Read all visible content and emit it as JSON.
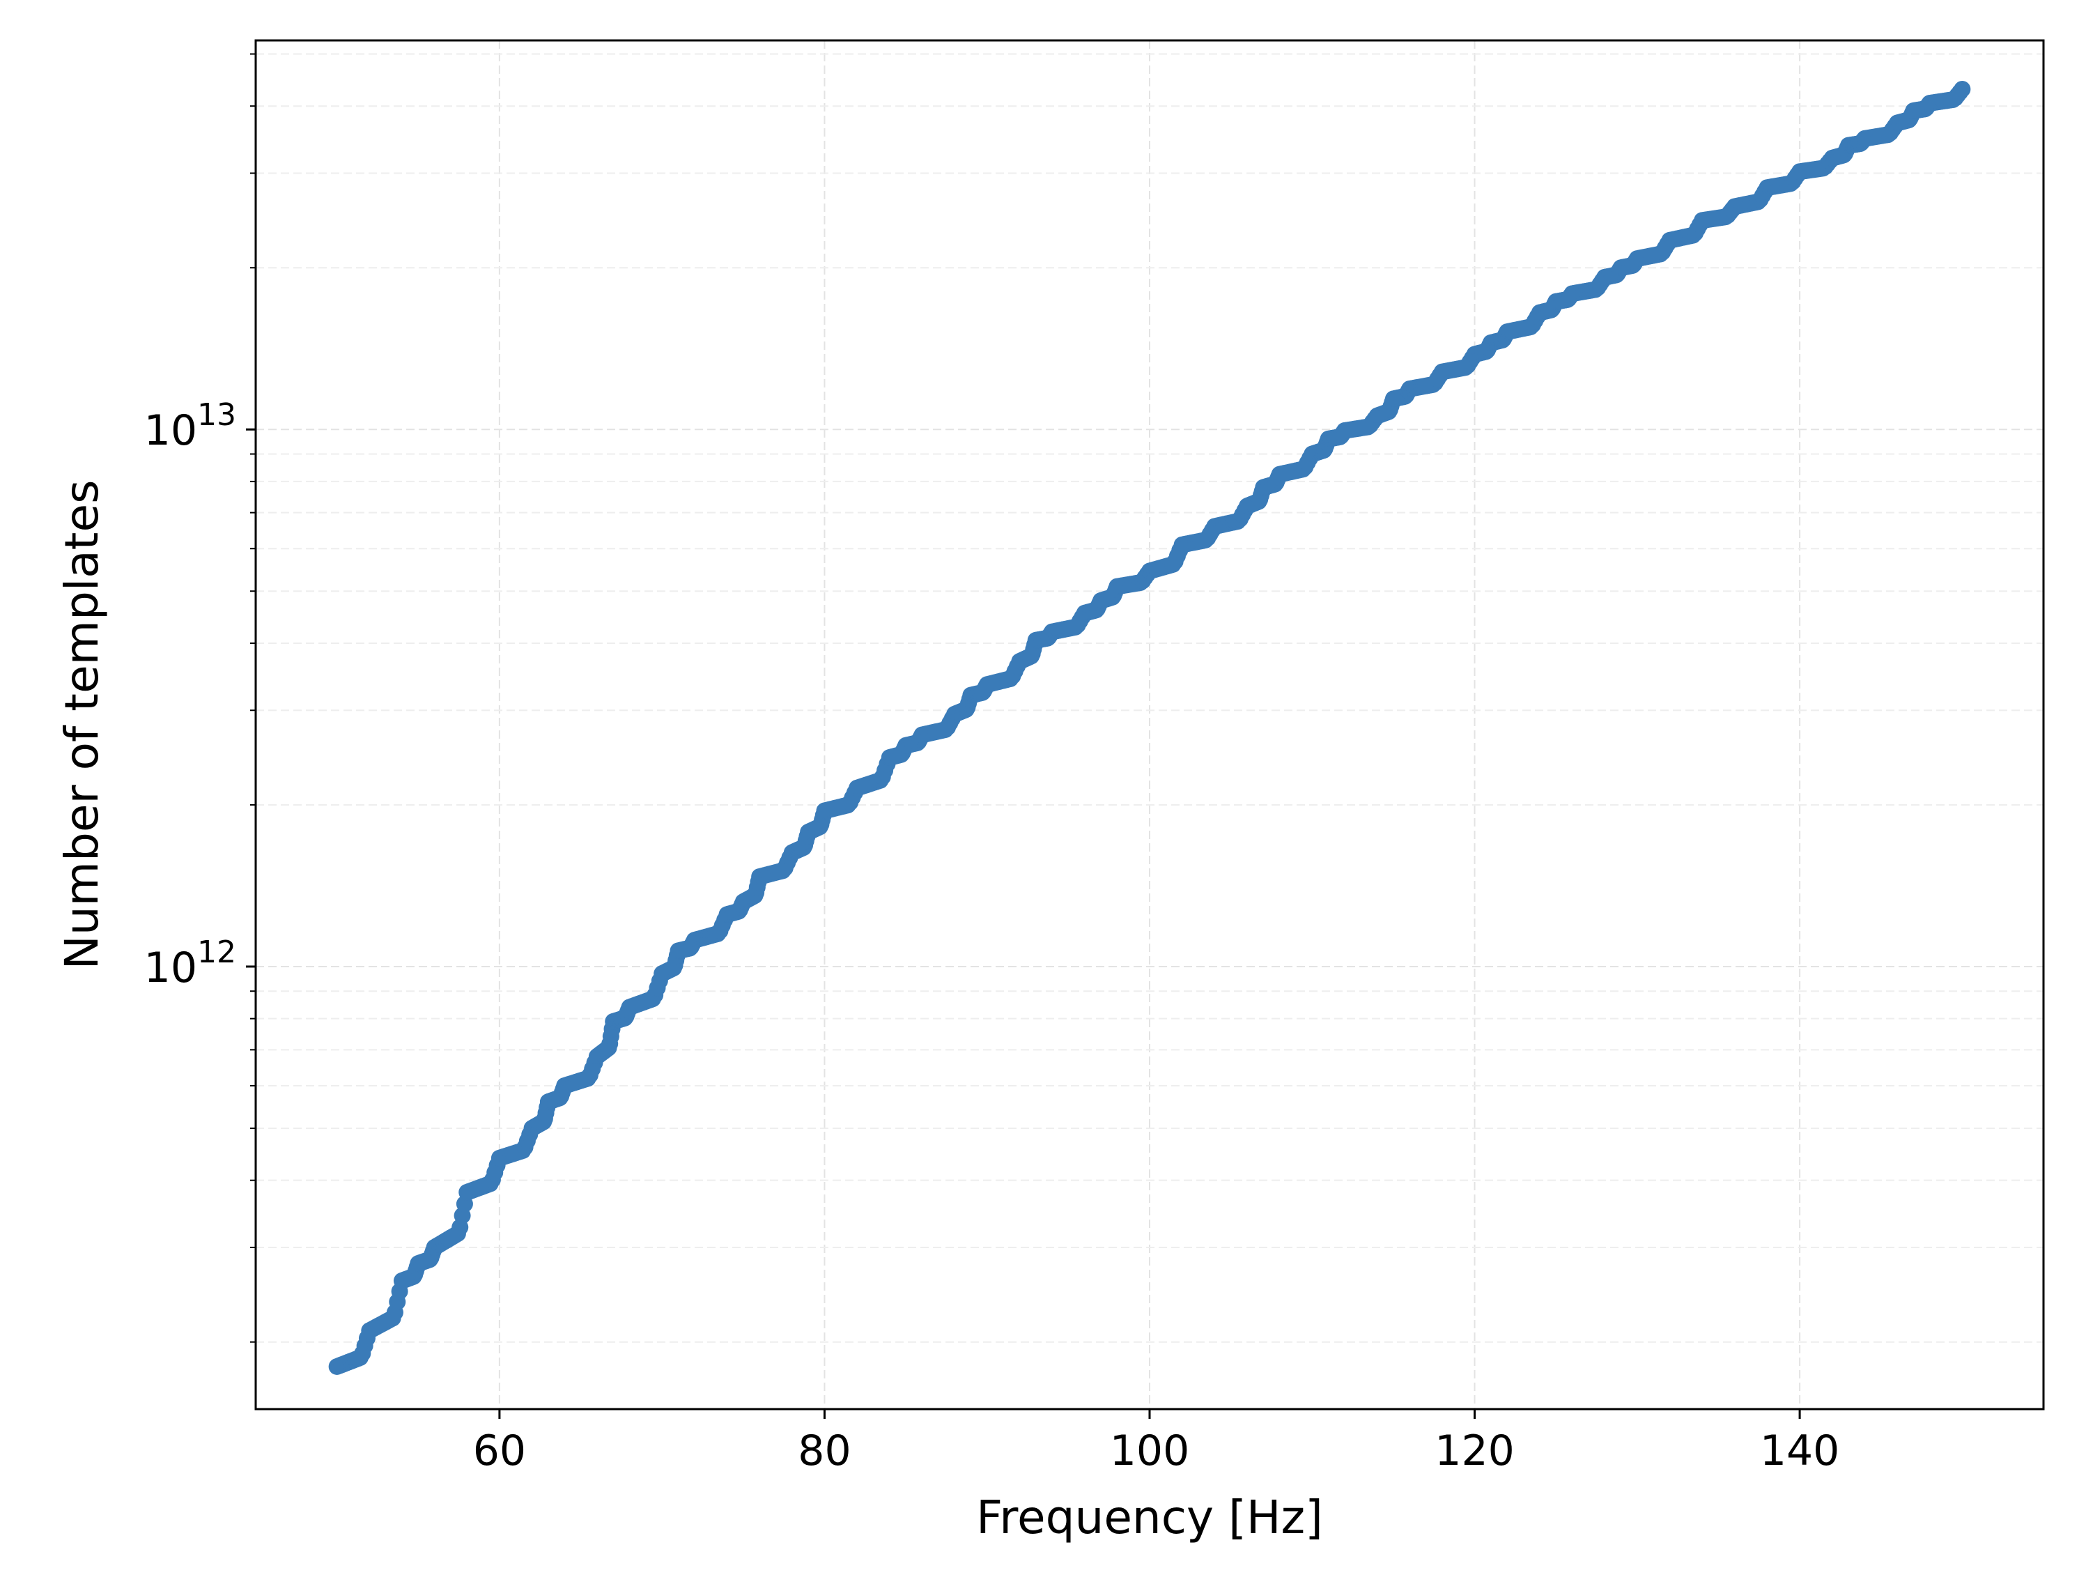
{
  "chart_data": {
    "type": "scatter",
    "title": "",
    "xlabel": "Frequency [Hz]",
    "ylabel": "Number of templates",
    "xlim": [
      45.0,
      155.0
    ],
    "ylim": [
      150000000000.0,
      53000000000000.0
    ],
    "yscale": "log",
    "grid": true,
    "x_ticks": [
      60,
      80,
      100,
      120,
      140
    ],
    "x_tick_labels": [
      "60",
      "80",
      "100",
      "120",
      "140"
    ],
    "y_ticks": [
      {
        "value": 1000000000000.0,
        "base": "10",
        "exponent": "12"
      },
      {
        "value": 10000000000000.0,
        "base": "10",
        "exponent": "13"
      }
    ],
    "marker_color": "#3a7bb8",
    "series": [
      {
        "x": [
          50,
          52,
          54,
          55,
          56,
          58,
          60,
          62,
          63,
          64,
          66,
          67,
          68,
          70,
          71,
          72,
          74,
          75,
          76,
          78,
          79,
          80,
          82,
          84,
          85,
          86,
          88,
          89,
          90,
          92,
          93,
          94,
          96,
          97,
          98,
          100,
          102,
          104,
          106,
          107,
          108,
          110,
          111,
          112,
          114,
          115,
          116,
          118,
          120,
          121,
          122,
          124,
          125,
          126,
          128,
          129,
          130,
          132,
          134,
          136,
          138,
          140,
          142,
          143,
          144,
          146,
          147,
          148,
          150
        ],
        "y": [
          180000000000.0,
          210000000000.0,
          260000000000.0,
          280000000000.0,
          300000000000.0,
          380000000000.0,
          440000000000.0,
          500000000000.0,
          560000000000.0,
          600000000000.0,
          680000000000.0,
          790000000000.0,
          840000000000.0,
          970000000000.0,
          1070000000000.0,
          1120000000000.0,
          1250000000000.0,
          1320000000000.0,
          1470000000000.0,
          1630000000000.0,
          1780000000000.0,
          1950000000000.0,
          2150000000000.0,
          2450000000000.0,
          2580000000000.0,
          2700000000000.0,
          2950000000000.0,
          3200000000000.0,
          3350000000000.0,
          3700000000000.0,
          4050000000000.0,
          4200000000000.0,
          4550000000000.0,
          4800000000000.0,
          5100000000000.0,
          5450000000000.0,
          6100000000000.0,
          6600000000000.0,
          7200000000000.0,
          7800000000000.0,
          8250000000000.0,
          9000000000000.0,
          9600000000000.0,
          9950000000000.0,
          10600000000000.0,
          11400000000000.0,
          11900000000000.0,
          12800000000000.0,
          13800000000000.0,
          14500000000000.0,
          15200000000000.0,
          16500000000000.0,
          17300000000000.0,
          17900000000000.0,
          19200000000000.0,
          20000000000000.0,
          20800000000000.0,
          22500000000000.0,
          24500000000000.0,
          26000000000000.0,
          28200000000000.0,
          30200000000000.0,
          32000000000000.0,
          33800000000000.0,
          34800000000000.0,
          37200000000000.0,
          39200000000000.0,
          40500000000000.0,
          43000000000000.0
        ]
      }
    ]
  }
}
